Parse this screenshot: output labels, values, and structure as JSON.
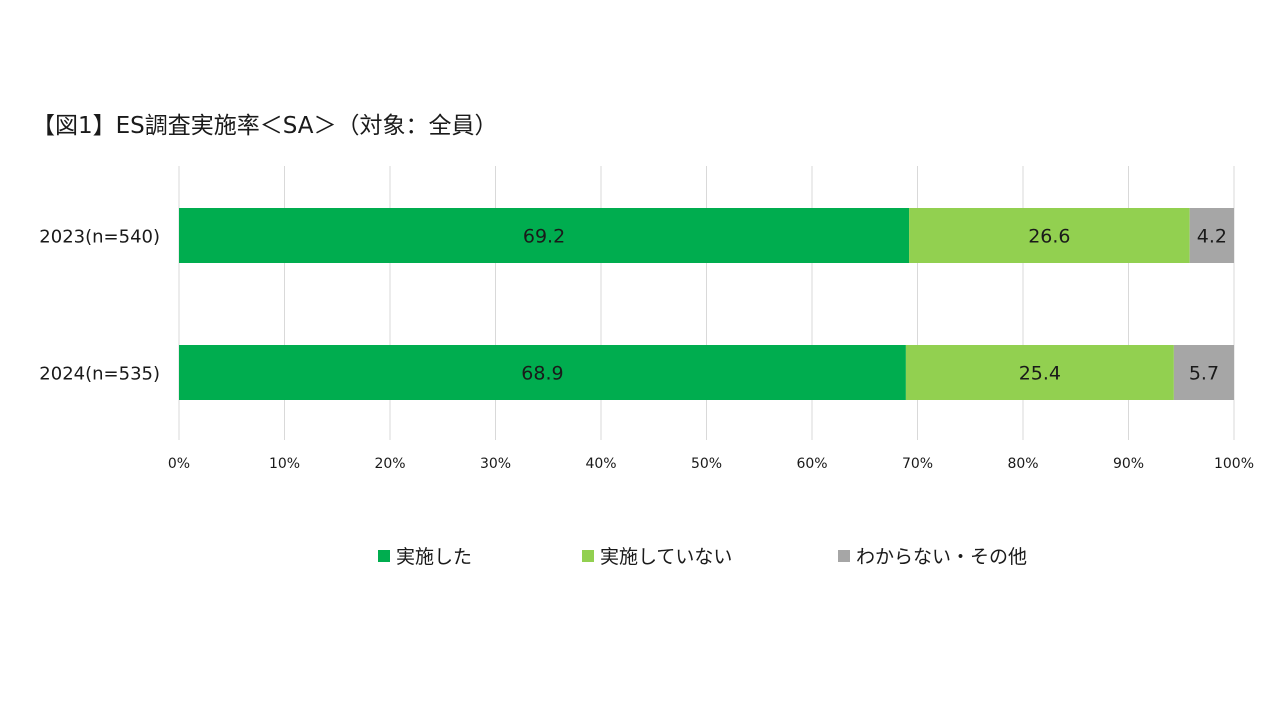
{
  "title": "【図1】ES調査実施率＜SA＞（対象：全員）",
  "chart_data": {
    "type": "bar",
    "orientation": "horizontal",
    "stacked": true,
    "title": "【図1】ES調査実施率＜SA＞（対象：全員）",
    "categories": [
      "2023(n=540)",
      "2024(n=535)"
    ],
    "series": [
      {
        "name": "実施した",
        "values": [
          69.2,
          68.9
        ],
        "color": "#00ad4f"
      },
      {
        "name": "実施していない",
        "values": [
          26.6,
          25.4
        ],
        "color": "#92d050"
      },
      {
        "name": "わからない・その他",
        "values": [
          4.2,
          5.7
        ],
        "color": "#a6a6a6"
      }
    ],
    "xlim": [
      0,
      100
    ],
    "xticks": [
      "0%",
      "10%",
      "20%",
      "30%",
      "40%",
      "50%",
      "60%",
      "70%",
      "80%",
      "90%",
      "100%"
    ],
    "grid": true,
    "legend_position": "bottom"
  }
}
